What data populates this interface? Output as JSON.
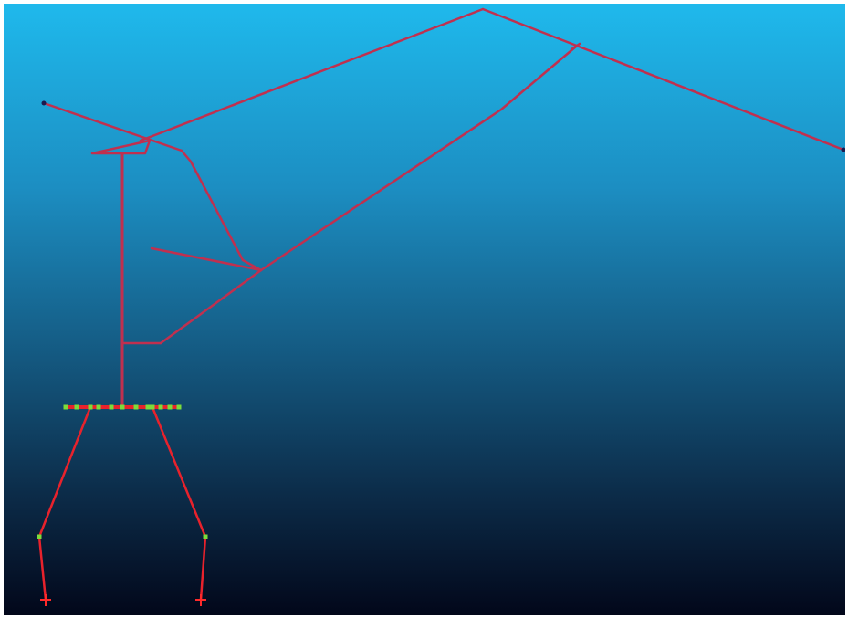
{
  "viewport": {
    "background_top": "#1fb9ec",
    "background_bottom": "#02071a"
  },
  "skeleton": {
    "member_color": "#c0304f",
    "leg_color": "#e8222c",
    "node_color": "#7ddc3a",
    "end_node_color": "#1a1a50",
    "support_color": "#ff2a2a"
  }
}
